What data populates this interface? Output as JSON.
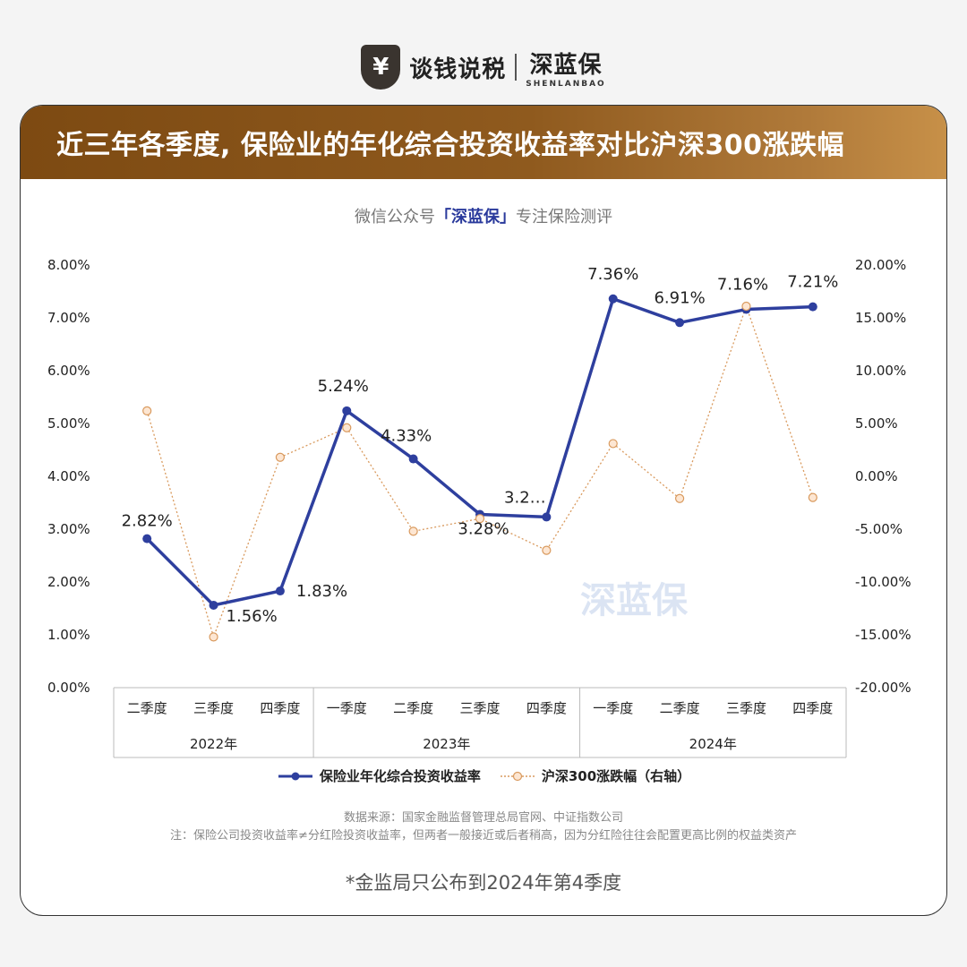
{
  "brand": {
    "name": "谈钱说税",
    "partner": "深蓝保",
    "partner_sub": "SHENLANBAO",
    "logo_char": "¥"
  },
  "header": {
    "title": "近三年各季度, 保险业的年化综合投资收益率对比沪深300涨跌幅"
  },
  "subtitle": {
    "prefix": "微信公众号",
    "highlight": "「深蓝保」",
    "suffix": "专注保险测评"
  },
  "watermark": "深蓝保",
  "colors": {
    "series1": "#2e3f9e",
    "series2": "#d99a5e",
    "brand_start": "#7d4a12",
    "brand_end": "#c79048"
  },
  "chart_data": {
    "type": "line",
    "categories": [
      "二季度",
      "三季度",
      "四季度",
      "一季度",
      "二季度",
      "三季度",
      "四季度",
      "一季度",
      "二季度",
      "三季度",
      "四季度"
    ],
    "groups": [
      {
        "label": "2022年",
        "span": 3
      },
      {
        "label": "2023年",
        "span": 4
      },
      {
        "label": "2024年",
        "span": 4
      }
    ],
    "series": [
      {
        "name": "保险业年化综合投资收益率",
        "axis": "left",
        "values": [
          2.82,
          1.56,
          1.83,
          5.24,
          4.33,
          3.28,
          3.23,
          7.36,
          6.91,
          7.16,
          7.21
        ],
        "labels": [
          "2.82%",
          "1.56%",
          "1.83%",
          "5.24%",
          "4.33%",
          "3.28%",
          "3.2…",
          "7.36%",
          "6.91%",
          "7.16%",
          "7.21%"
        ]
      },
      {
        "name": "沪深300涨跌幅（右轴）",
        "axis": "right",
        "values": [
          6.2,
          -15.2,
          1.8,
          4.6,
          -5.2,
          -4.0,
          -7.0,
          3.1,
          -2.1,
          16.1,
          -2.0
        ]
      }
    ],
    "ylim_left": [
      0,
      8
    ],
    "ylim_right": [
      -20,
      20
    ],
    "yticks_left": [
      "0.00%",
      "1.00%",
      "2.00%",
      "3.00%",
      "4.00%",
      "5.00%",
      "6.00%",
      "7.00%",
      "8.00%"
    ],
    "yticks_right": [
      "-20.00%",
      "-15.00%",
      "-10.00%",
      "-5.00%",
      "0.00%",
      "5.00%",
      "10.00%",
      "15.00%",
      "20.00%"
    ],
    "legend_position": "bottom",
    "grid": false
  },
  "footer": {
    "source": "数据来源：国家金融监督管理总局官网、中证指数公司",
    "note": "注：保险公司投资收益率≠分红险投资收益率，但两者一般接近或后者稍高，因为分红险往往会配置更高比例的权益类资产",
    "disclaimer": "*金监局只公布到2024年第4季度"
  }
}
